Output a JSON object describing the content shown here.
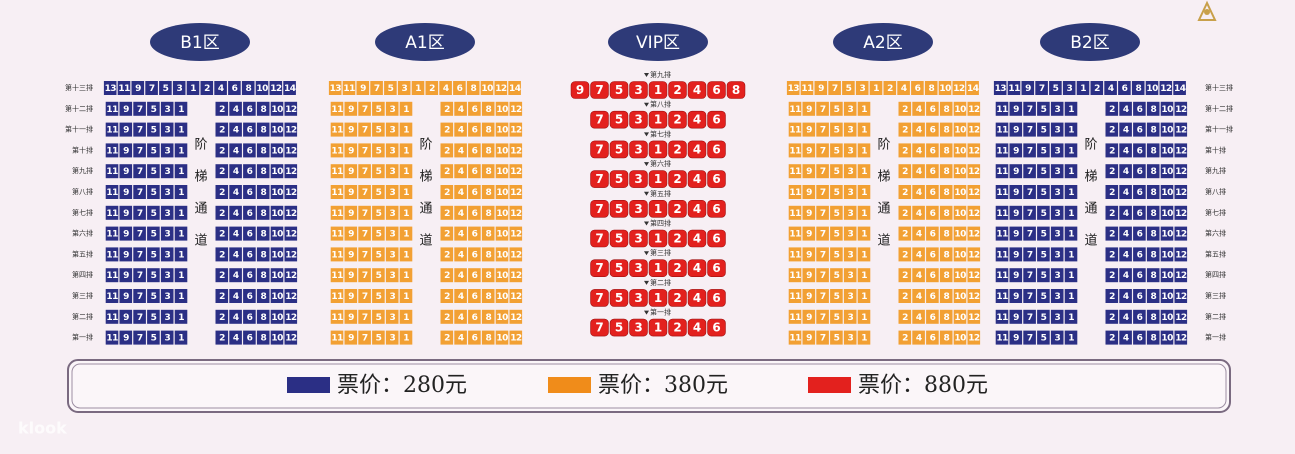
{
  "sections": [
    {
      "label": "B1区",
      "color": "#2b2f85"
    },
    {
      "label": "A1区",
      "color": "#f2a033"
    },
    {
      "label": "VIP区",
      "color": "#e3211e"
    },
    {
      "label": "A2区",
      "color": "#f2a033"
    },
    {
      "label": "B2区",
      "color": "#2b2f85"
    }
  ],
  "side_rows": [
    {
      "label": "第十三排",
      "left": [
        13,
        11,
        9,
        7,
        5,
        3,
        1
      ],
      "right": [
        2,
        4,
        6,
        8,
        10,
        12,
        14
      ]
    },
    {
      "label": "第十二排",
      "left": [
        11,
        9,
        7,
        5,
        3,
        1
      ],
      "right": [
        2,
        4,
        6,
        8,
        10,
        12
      ]
    },
    {
      "label": "第十一排",
      "left": [
        11,
        9,
        7,
        5,
        3,
        1
      ],
      "right": [
        2,
        4,
        6,
        8,
        10,
        12
      ]
    },
    {
      "label": "第十排",
      "left": [
        11,
        9,
        7,
        5,
        3,
        1
      ],
      "right": [
        2,
        4,
        6,
        8,
        10,
        12
      ]
    },
    {
      "label": "第九排",
      "left": [
        11,
        9,
        7,
        5,
        3,
        1
      ],
      "right": [
        2,
        4,
        6,
        8,
        10,
        12
      ]
    },
    {
      "label": "第八排",
      "left": [
        11,
        9,
        7,
        5,
        3,
        1
      ],
      "right": [
        2,
        4,
        6,
        8,
        10,
        12
      ]
    },
    {
      "label": "第七排",
      "left": [
        11,
        9,
        7,
        5,
        3,
        1
      ],
      "right": [
        2,
        4,
        6,
        8,
        10,
        12
      ]
    },
    {
      "label": "第六排",
      "left": [
        11,
        9,
        7,
        5,
        3,
        1
      ],
      "right": [
        2,
        4,
        6,
        8,
        10,
        12
      ]
    },
    {
      "label": "第五排",
      "left": [
        11,
        9,
        7,
        5,
        3,
        1
      ],
      "right": [
        2,
        4,
        6,
        8,
        10,
        12
      ]
    },
    {
      "label": "第四排",
      "left": [
        11,
        9,
        7,
        5,
        3,
        1
      ],
      "right": [
        2,
        4,
        6,
        8,
        10,
        12
      ]
    },
    {
      "label": "第三排",
      "left": [
        11,
        9,
        7,
        5,
        3,
        1
      ],
      "right": [
        2,
        4,
        6,
        8,
        10,
        12
      ]
    },
    {
      "label": "第二排",
      "left": [
        11,
        9,
        7,
        5,
        3,
        1
      ],
      "right": [
        2,
        4,
        6,
        8,
        10,
        12
      ]
    },
    {
      "label": "第一排",
      "left": [
        11,
        9,
        7,
        5,
        3,
        1
      ],
      "right": [
        2,
        4,
        6,
        8,
        10,
        12
      ]
    }
  ],
  "aisle": [
    "阶",
    "梯",
    "通",
    "道"
  ],
  "vip_rows": [
    {
      "label": "第九排",
      "seats": [
        9,
        7,
        5,
        3,
        1,
        2,
        4,
        6,
        8
      ]
    },
    {
      "label": "第八排",
      "seats": [
        7,
        5,
        3,
        1,
        2,
        4,
        6
      ]
    },
    {
      "label": "第七排",
      "seats": [
        7,
        5,
        3,
        1,
        2,
        4,
        6
      ]
    },
    {
      "label": "第六排",
      "seats": [
        7,
        5,
        3,
        1,
        2,
        4,
        6
      ]
    },
    {
      "label": "第五排",
      "seats": [
        7,
        5,
        3,
        1,
        2,
        4,
        6
      ]
    },
    {
      "label": "第四排",
      "seats": [
        7,
        5,
        3,
        1,
        2,
        4,
        6
      ]
    },
    {
      "label": "第三排",
      "seats": [
        7,
        5,
        3,
        1,
        2,
        4,
        6
      ]
    },
    {
      "label": "第二排",
      "seats": [
        7,
        5,
        3,
        1,
        2,
        4,
        6
      ]
    },
    {
      "label": "第一排",
      "seats": [
        7,
        5,
        3,
        1,
        2,
        4,
        6
      ]
    }
  ],
  "legend": [
    {
      "label": "票价：280元",
      "color": "#2b2f85"
    },
    {
      "label": "票价：380元",
      "color": "#f08c1a"
    },
    {
      "label": "票价：880元",
      "color": "#e3211e"
    }
  ],
  "watermark": "klook"
}
